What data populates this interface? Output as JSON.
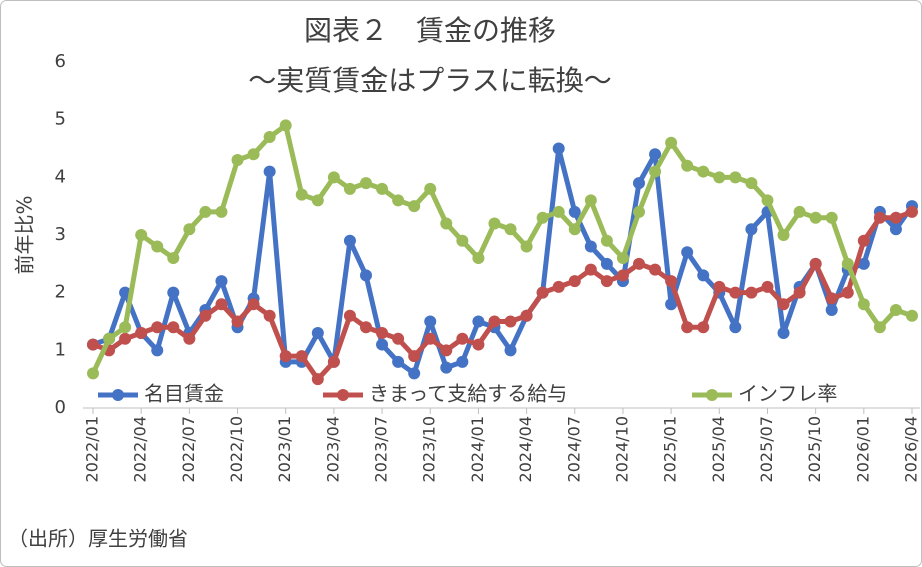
{
  "chart_data": {
    "type": "line",
    "title": "図表２　賃金の推移",
    "subtitle": "～実質賃金はプラスに転換～",
    "y_label": "前年比%",
    "source": "（出所）厚生労働省",
    "categories": [
      "2022/01",
      null,
      null,
      "2022/04",
      null,
      null,
      "2022/07",
      null,
      null,
      "2022/10",
      null,
      null,
      "2023/01",
      null,
      null,
      "2023/04",
      null,
      null,
      "2023/07",
      null,
      null,
      "2023/10",
      null,
      null,
      "2024/01",
      null,
      null,
      "2024/04",
      null,
      null,
      "2024/07",
      null,
      null,
      "2024/10",
      null,
      null,
      "2025/01",
      null,
      null,
      "2025/04",
      null,
      null,
      "2025/07",
      null,
      null,
      "2025/10",
      null,
      null,
      "2026/01",
      null,
      null,
      "2026/04"
    ],
    "series": [
      {
        "name": "名目賃金",
        "color": "#4472c4",
        "values": [
          1.1,
          1.2,
          2.0,
          1.3,
          1.0,
          2.0,
          1.3,
          1.7,
          2.2,
          1.4,
          1.9,
          4.1,
          0.8,
          0.8,
          1.3,
          0.8,
          2.9,
          2.3,
          1.1,
          0.8,
          0.6,
          1.5,
          0.7,
          0.8,
          1.5,
          1.4,
          1.0,
          1.6,
          2.0,
          4.5,
          3.4,
          2.8,
          2.5,
          2.2,
          3.9,
          4.4,
          1.8,
          2.7,
          2.3,
          2.0,
          1.4,
          3.1,
          3.4,
          1.3,
          2.1,
          2.5,
          1.7,
          2.4,
          2.5,
          3.4,
          3.1,
          3.5
        ]
      },
      {
        "name": "きまって支給する給与",
        "color": "#c0504d",
        "values": [
          1.1,
          1.0,
          1.2,
          1.3,
          1.4,
          1.4,
          1.2,
          1.6,
          1.8,
          1.5,
          1.8,
          1.6,
          0.9,
          0.9,
          0.5,
          0.8,
          1.6,
          1.4,
          1.3,
          1.2,
          0.9,
          1.2,
          1.0,
          1.2,
          1.1,
          1.5,
          1.5,
          1.6,
          2.0,
          2.1,
          2.2,
          2.4,
          2.2,
          2.3,
          2.5,
          2.4,
          2.2,
          1.4,
          1.4,
          2.1,
          2.0,
          2.0,
          2.1,
          1.8,
          2.0,
          2.5,
          1.9,
          2.0,
          2.9,
          3.3,
          3.3,
          3.4
        ]
      },
      {
        "name": "インフレ率",
        "color": "#9bbb59",
        "values": [
          0.6,
          1.2,
          1.4,
          3.0,
          2.8,
          2.6,
          3.1,
          3.4,
          3.4,
          4.3,
          4.4,
          4.7,
          4.9,
          3.7,
          3.6,
          4.0,
          3.8,
          3.9,
          3.8,
          3.6,
          3.5,
          3.8,
          3.2,
          2.9,
          2.6,
          3.2,
          3.1,
          2.8,
          3.3,
          3.4,
          3.1,
          3.6,
          2.9,
          2.6,
          3.4,
          4.1,
          4.6,
          4.2,
          4.1,
          4.0,
          4.0,
          3.9,
          3.6,
          3.0,
          3.4,
          3.3,
          3.3,
          2.5,
          1.8,
          1.4,
          1.7,
          1.6
        ]
      }
    ],
    "ylim": [
      0,
      6
    ],
    "yticks": [
      0,
      1,
      2,
      3,
      4,
      5,
      6
    ],
    "grid": false
  }
}
